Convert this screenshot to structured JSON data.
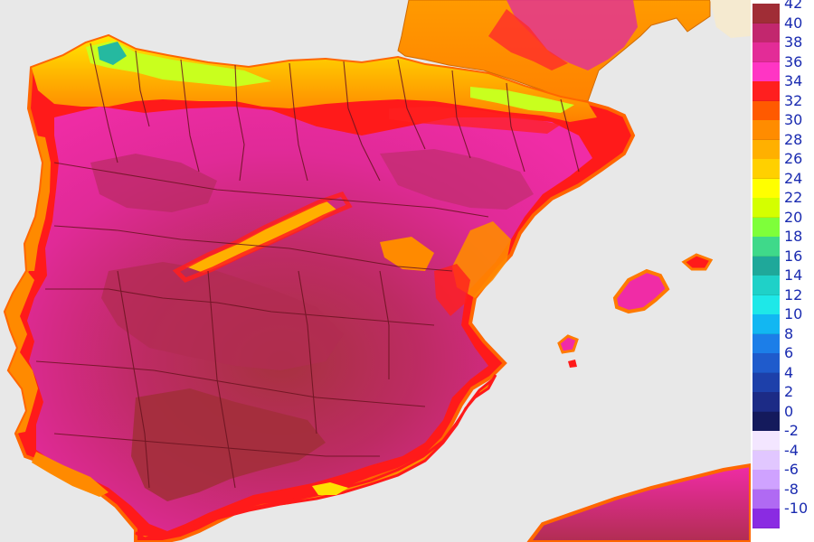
{
  "map": {
    "regions": {
      "iberia": "iberian-peninsula",
      "france": "southern-france",
      "balearics": [
        "mallorca",
        "menorca",
        "ibiza"
      ],
      "africa": "north-africa-coast"
    },
    "colors": {
      "sea": "#e8e8e8",
      "land_hot": "#f02ca6",
      "land_very_hot": "#c4287a",
      "land_extreme": "#a2303a",
      "coast_orange": "#ff8a00",
      "coast_red": "#ff1010",
      "north_yellow": "#ffe000",
      "north_lime": "#c9ff1e",
      "north_teal": "#25b9a0",
      "france_orange": "#ff9a00",
      "border": "#6b1420"
    }
  },
  "legend": {
    "items": [
      {
        "label": "42",
        "color": "#a02d36"
      },
      {
        "label": "40",
        "color": "#c2276e"
      },
      {
        "label": "38",
        "color": "#e32c97"
      },
      {
        "label": "36",
        "color": "#ff35c4"
      },
      {
        "label": "34",
        "color": "#ff1f1f"
      },
      {
        "label": "32",
        "color": "#ff5a00"
      },
      {
        "label": "30",
        "color": "#ff8c00"
      },
      {
        "label": "28",
        "color": "#ffb000"
      },
      {
        "label": "26",
        "color": "#ffd000"
      },
      {
        "label": "24",
        "color": "#ffff00"
      },
      {
        "label": "22",
        "color": "#d4ff00"
      },
      {
        "label": "20",
        "color": "#7eff3a"
      },
      {
        "label": "18",
        "color": "#3fd98a"
      },
      {
        "label": "16",
        "color": "#1fa89a"
      },
      {
        "label": "14",
        "color": "#1fd1c8"
      },
      {
        "label": "12",
        "color": "#1ee8e8"
      },
      {
        "label": "10",
        "color": "#12b7f2"
      },
      {
        "label": "8",
        "color": "#1c7ee8"
      },
      {
        "label": "6",
        "color": "#1f5bcc"
      },
      {
        "label": "4",
        "color": "#1d40aa"
      },
      {
        "label": "2",
        "color": "#1c2b86"
      },
      {
        "label": "0",
        "color": "#141a5c"
      },
      {
        "label": "-2",
        "color": "#f3e6ff"
      },
      {
        "label": "-4",
        "color": "#e1c7ff"
      },
      {
        "label": "-6",
        "color": "#cfa2ff"
      },
      {
        "label": "-8",
        "color": "#b06af3"
      },
      {
        "label": "-10",
        "color": "#8a2be2"
      }
    ]
  }
}
